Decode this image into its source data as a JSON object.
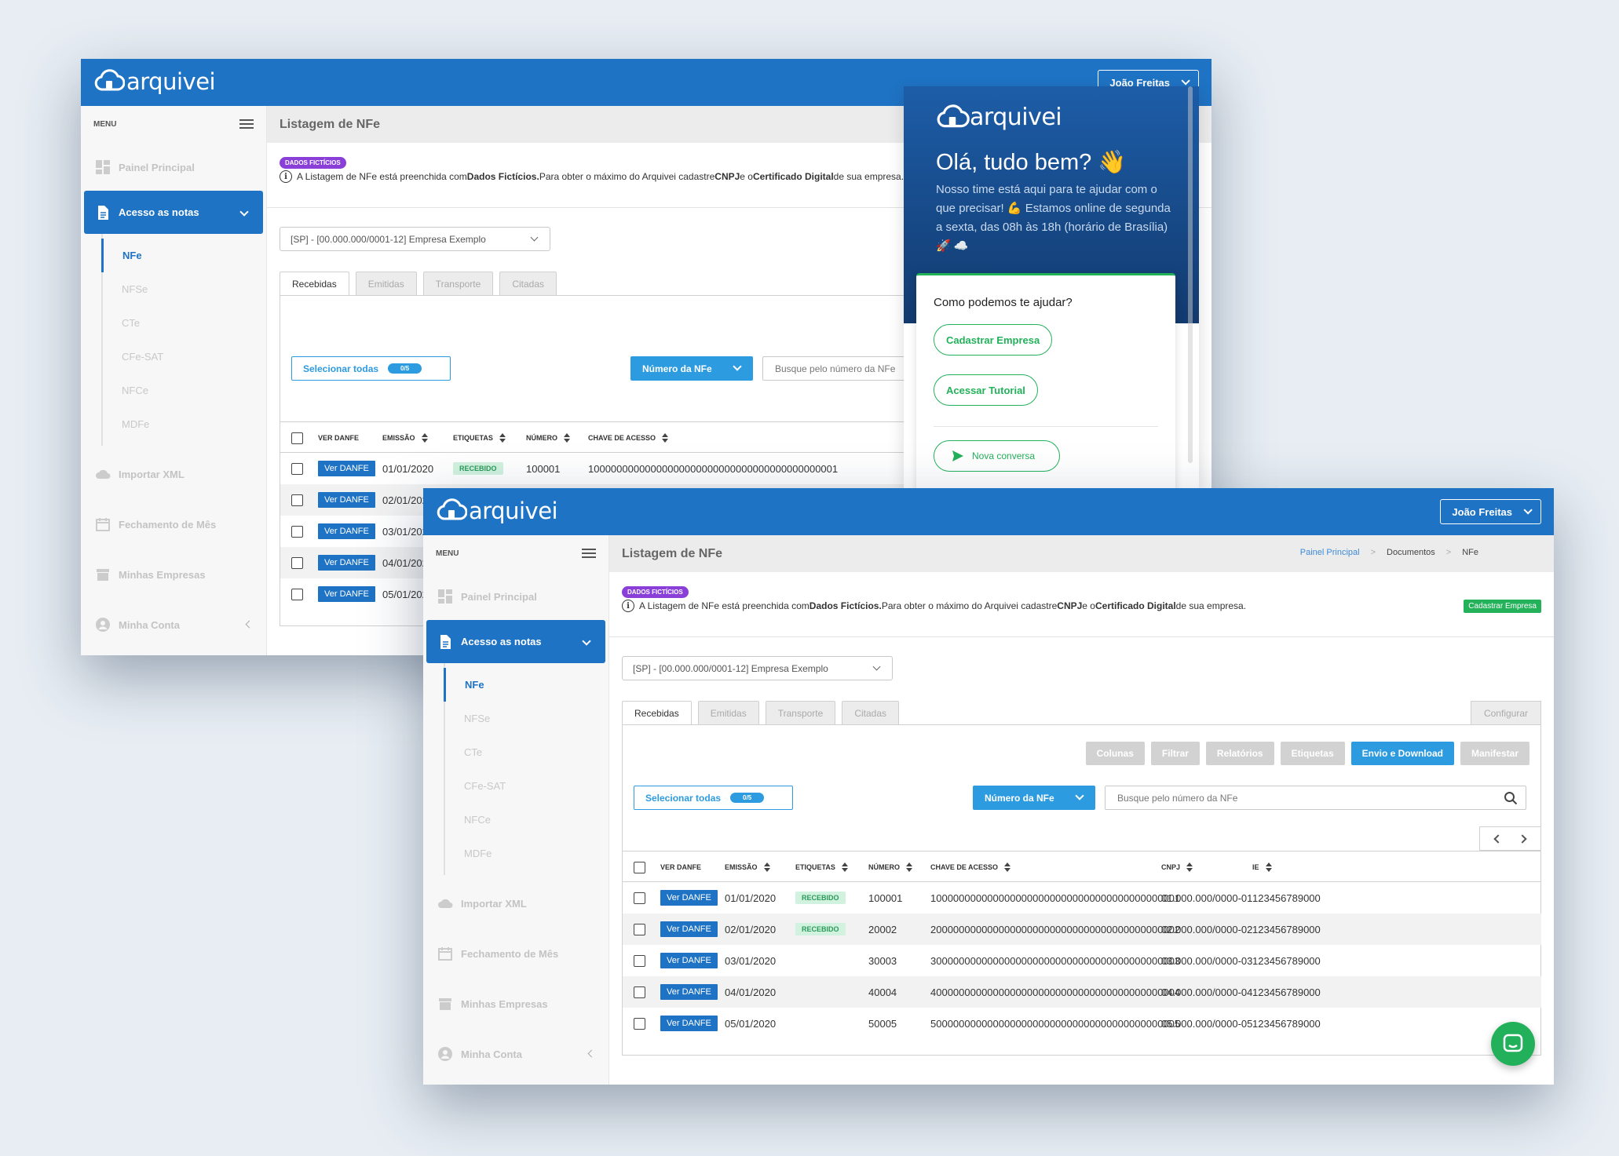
{
  "app": {
    "logo_text": "arquivei",
    "user_name": "João Freitas",
    "menu_label": "MENU",
    "page_title": "Listagem de NFe",
    "colors": {
      "primary": "#1f73c4",
      "accent": "#2d9be0",
      "success": "#23b15a",
      "badge": "#8a3fd8"
    }
  },
  "breadcrumb": [
    "Painel Principal",
    ">",
    "Documentos",
    ">",
    "NFe"
  ],
  "sidebar": {
    "painel": "Painel Principal",
    "acesso": "Acesso as notas",
    "sub": [
      "NFe",
      "NFSe",
      "CTe",
      "CFe-SAT",
      "NFCe",
      "MDFe"
    ],
    "importar": "Importar XML",
    "fechamento": "Fechamento de Mês",
    "empresas": "Minhas Empresas",
    "conta": "Minha Conta"
  },
  "notice": {
    "badge": "DADOS FICTÍCIOS",
    "p1": "A Listagem de NFe está preenchida com ",
    "b1": "Dados Fictícios.",
    "p2": " Para obter o máximo do Arquivei cadastre ",
    "b2": "CNPJ",
    "p3": " e o ",
    "b3": "Certificado Digital",
    "p4": " de sua empresa.",
    "button": "Cadastrar Empresa"
  },
  "company_select": "[SP] - [00.000.000/0001-12] Empresa Exemplo",
  "tabs": [
    "Recebidas",
    "Emitidas",
    "Transporte",
    "Citadas"
  ],
  "config_tab": "Configurar",
  "actions": [
    "Colunas",
    "Filtrar",
    "Relatórios",
    "Etiquetas",
    "Envio e Download",
    "Manifestar"
  ],
  "select_all": {
    "label": "Selecionar todas",
    "count": "0/5"
  },
  "search": {
    "filter": "Número da NFe",
    "placeholder": "Busque pelo número da NFe"
  },
  "table": {
    "headers": [
      "VER DANFE",
      "EMISSÃO",
      "ETIQUETAS",
      "NÚMERO",
      "CHAVE DE ACESSO",
      "CNPJ",
      "IE"
    ],
    "danfe_label": "Ver DANFE",
    "rows": [
      {
        "date": "01/01/2020",
        "tag": "RECEBIDO",
        "num": "100001",
        "key": "10000000000000000000000000000000000000000001",
        "cnpj": "01.000.000/0000-01",
        "ie": "123456789000"
      },
      {
        "date": "02/01/2020",
        "tag": "RECEBIDO",
        "num": "20002",
        "key": "20000000000000000000000000000000000000000002",
        "cnpj": "02.000.000/0000-02",
        "ie": "123456789000"
      },
      {
        "date": "03/01/2020",
        "tag": "",
        "num": "30003",
        "key": "30000000000000000000000000000000000000000003",
        "cnpj": "03.000.000/0000-03",
        "ie": "123456789000"
      },
      {
        "date": "04/01/2020",
        "tag": "",
        "num": "40004",
        "key": "40000000000000000000000000000000000000000004",
        "cnpj": "04.000.000/0000-04",
        "ie": "123456789000"
      },
      {
        "date": "05/01/2020",
        "tag": "",
        "num": "50005",
        "key": "50000000000000000000000000000000000000000005",
        "cnpj": "05.000.000/0000-05",
        "ie": "123456789000"
      }
    ]
  },
  "chat": {
    "logo_text": "arquivei",
    "greeting": "Olá, tudo bem? 👋",
    "text": "Nosso time está aqui para te ajudar com o que precisar! 💪 Estamos online de segunda a sexta, das 08h às 18h (horário de Brasília) 🚀 ☁️",
    "question": "Como podemos te ajudar?",
    "btn1": "Cadastrar Empresa",
    "btn2": "Acessar Tutorial",
    "new_conv": "Nova conversa"
  }
}
